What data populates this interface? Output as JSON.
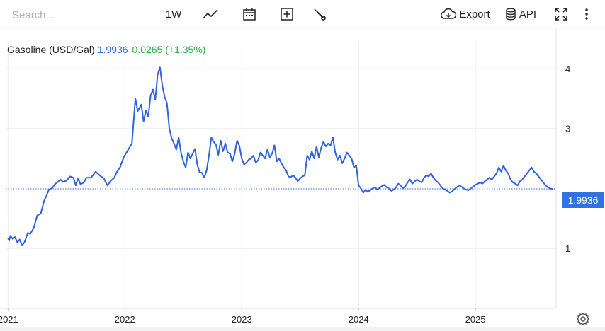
{
  "toolbar": {
    "search_placeholder": "Search...",
    "period_label": "1W",
    "export_label": "Export",
    "api_label": "API",
    "icons": [
      "line-chart-icon",
      "calendar-icon",
      "plus-square-icon",
      "wrench-icon",
      "cloud-download-icon",
      "database-icon",
      "fullscreen-icon",
      "more-vertical-icon"
    ]
  },
  "legend": {
    "name": "Gasoline (USD/Gal)",
    "price": "1.9936",
    "change": "0.0265 (+1.35%)"
  },
  "last_value_label": "1.9936",
  "colors": {
    "line": "#2f62dc",
    "badge": "#3372e0",
    "price": "#2f6bd8",
    "change": "#2eaa3c",
    "grid": "#ececec"
  },
  "chart_data": {
    "type": "line",
    "title": "",
    "xlabel": "",
    "ylabel": "",
    "ylim": [
      0,
      4.2
    ],
    "xlim": [
      2020.98,
      2025.69
    ],
    "y_ticks": [
      1,
      3,
      4
    ],
    "x_ticks": [
      2021,
      2022,
      2023,
      2024,
      2025
    ],
    "x_tick_labels": [
      "2021",
      "2022",
      "2023",
      "2024",
      "2025"
    ],
    "grid": true,
    "y_axis_side": "right",
    "last_value": 1.9936,
    "series": [
      {
        "name": "Gasoline (USD/Gal)",
        "x": [
          2021.0,
          2021.01,
          2021.02,
          2021.04,
          2021.06,
          2021.08,
          2021.1,
          2021.12,
          2021.14,
          2021.17,
          2021.19,
          2021.22,
          2021.25,
          2021.28,
          2021.31,
          2021.33,
          2021.35,
          2021.38,
          2021.4,
          2021.42,
          2021.45,
          2021.47,
          2021.5,
          2021.53,
          2021.56,
          2021.58,
          2021.6,
          2021.62,
          2021.65,
          2021.67,
          2021.71,
          2021.75,
          2021.79,
          2021.82,
          2021.85,
          2021.88,
          2021.91,
          2021.93,
          2021.96,
          2021.99,
          2022.02,
          2022.06,
          2022.09,
          2022.11,
          2022.14,
          2022.16,
          2022.18,
          2022.2,
          2022.22,
          2022.24,
          2022.26,
          2022.28,
          2022.3,
          2022.32,
          2022.34,
          2022.36,
          2022.38,
          2022.4,
          2022.42,
          2022.44,
          2022.46,
          2022.48,
          2022.5,
          2022.52,
          2022.54,
          2022.56,
          2022.58,
          2022.6,
          2022.62,
          2022.64,
          2022.66,
          2022.68,
          2022.7,
          2022.72,
          2022.74,
          2022.76,
          2022.78,
          2022.8,
          2022.82,
          2022.84,
          2022.86,
          2022.88,
          2022.9,
          2022.92,
          2022.94,
          2022.96,
          2022.98,
          2023.0,
          2023.02,
          2023.04,
          2023.06,
          2023.08,
          2023.1,
          2023.12,
          2023.14,
          2023.16,
          2023.18,
          2023.2,
          2023.22,
          2023.24,
          2023.26,
          2023.28,
          2023.3,
          2023.32,
          2023.34,
          2023.36,
          2023.38,
          2023.4,
          2023.42,
          2023.44,
          2023.46,
          2023.48,
          2023.5,
          2023.52,
          2023.54,
          2023.56,
          2023.58,
          2023.6,
          2023.62,
          2023.64,
          2023.66,
          2023.68,
          2023.7,
          2023.72,
          2023.74,
          2023.76,
          2023.78,
          2023.8,
          2023.82,
          2023.84,
          2023.86,
          2023.88,
          2023.9,
          2023.92,
          2023.94,
          2023.96,
          2023.98,
          2024.0,
          2024.02,
          2024.04,
          2024.06,
          2024.08,
          2024.1,
          2024.12,
          2024.14,
          2024.16,
          2024.18,
          2024.2,
          2024.22,
          2024.24,
          2024.26,
          2024.28,
          2024.3,
          2024.32,
          2024.34,
          2024.36,
          2024.38,
          2024.4,
          2024.42,
          2024.44,
          2024.46,
          2024.48,
          2024.5,
          2024.52,
          2024.54,
          2024.56,
          2024.58,
          2024.6,
          2024.62,
          2024.64,
          2024.66,
          2024.68,
          2024.7,
          2024.72,
          2024.74,
          2024.76,
          2024.78,
          2024.8,
          2024.82,
          2024.84,
          2024.86,
          2024.88,
          2024.9,
          2024.92,
          2024.94,
          2024.96,
          2024.98,
          2025.0,
          2025.02,
          2025.04,
          2025.06,
          2025.08,
          2025.1,
          2025.12,
          2025.14,
          2025.16,
          2025.18,
          2025.2,
          2025.22,
          2025.24,
          2025.26,
          2025.28,
          2025.3,
          2025.32,
          2025.34,
          2025.36,
          2025.38,
          2025.4,
          2025.42,
          2025.44,
          2025.46,
          2025.48,
          2025.5,
          2025.52,
          2025.54,
          2025.56,
          2025.58,
          2025.6,
          2025.62,
          2025.64,
          2025.66
        ],
        "values": [
          1.17,
          1.13,
          1.21,
          1.16,
          1.19,
          1.1,
          1.15,
          1.05,
          1.1,
          1.26,
          1.24,
          1.34,
          1.55,
          1.58,
          1.8,
          1.88,
          1.98,
          2.01,
          2.07,
          2.1,
          2.15,
          2.11,
          2.13,
          2.2,
          2.18,
          2.05,
          2.17,
          2.07,
          2.1,
          2.18,
          2.18,
          2.28,
          2.21,
          2.17,
          2.05,
          2.13,
          2.18,
          2.27,
          2.36,
          2.52,
          2.62,
          2.75,
          3.5,
          3.29,
          3.4,
          3.12,
          3.3,
          3.2,
          3.55,
          3.65,
          3.48,
          3.9,
          4.02,
          3.72,
          3.53,
          3.42,
          3.0,
          2.84,
          2.75,
          2.65,
          2.85,
          2.6,
          2.45,
          2.35,
          2.6,
          2.5,
          2.58,
          2.66,
          2.4,
          2.27,
          2.26,
          2.18,
          2.3,
          2.55,
          2.85,
          2.78,
          2.73,
          2.56,
          2.8,
          2.62,
          2.75,
          2.6,
          2.58,
          2.45,
          2.58,
          2.8,
          2.71,
          2.5,
          2.4,
          2.43,
          2.48,
          2.5,
          2.55,
          2.43,
          2.47,
          2.6,
          2.55,
          2.5,
          2.65,
          2.52,
          2.58,
          2.72,
          2.45,
          2.5,
          2.42,
          2.35,
          2.3,
          2.2,
          2.19,
          2.22,
          2.18,
          2.12,
          2.17,
          2.2,
          2.22,
          2.55,
          2.48,
          2.62,
          2.5,
          2.7,
          2.52,
          2.68,
          2.78,
          2.7,
          2.75,
          2.72,
          2.85,
          2.6,
          2.48,
          2.55,
          2.42,
          2.5,
          2.6,
          2.55,
          2.5,
          2.35,
          2.38,
          2.05,
          2.0,
          1.93,
          1.98,
          1.94,
          1.98,
          2.0,
          2.02,
          1.98,
          2.01,
          2.04,
          2.06,
          2.02,
          2.0,
          1.96,
          1.98,
          2.02,
          2.08,
          2.05,
          2.0,
          2.04,
          2.1,
          2.15,
          2.08,
          2.12,
          2.15,
          2.12,
          2.1,
          2.18,
          2.22,
          2.2,
          2.25,
          2.18,
          2.13,
          2.1,
          2.05,
          2.0,
          1.98,
          1.96,
          1.93,
          1.95,
          1.99,
          2.02,
          2.05,
          2.03,
          2.0,
          1.98,
          1.97,
          2.0,
          2.03,
          2.06,
          2.08,
          2.1,
          2.08,
          2.12,
          2.15,
          2.18,
          2.15,
          2.2,
          2.25,
          2.35,
          2.28,
          2.38,
          2.3,
          2.25,
          2.15,
          2.1,
          2.08,
          2.05,
          2.12,
          2.15,
          2.2,
          2.25,
          2.3,
          2.35,
          2.28,
          2.25,
          2.2,
          2.15,
          2.1,
          2.05,
          2.02,
          2.0,
          1.99
        ]
      }
    ]
  }
}
